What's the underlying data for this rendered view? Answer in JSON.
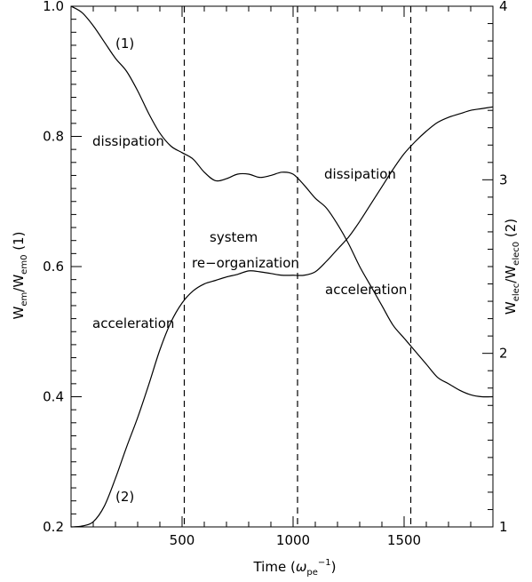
{
  "chart_data": {
    "type": "line",
    "xlabel": "Time (ω_pe^-1)",
    "ylabel_left": "W_em/W_em0 (1)",
    "ylabel_right": "W_elec/W_elec0 (2)",
    "xlim": [
      0,
      1900
    ],
    "ylim_left": [
      0.2,
      1.0
    ],
    "ylim_right": [
      1,
      4
    ],
    "x_ticks": [
      500,
      1000,
      1500
    ],
    "y_left_ticks": [
      0.2,
      0.4,
      0.6,
      0.8,
      1.0
    ],
    "y_left_tick_labels": [
      "0.2",
      "0.4",
      "0.6",
      "0.8",
      "1.0"
    ],
    "y_right_ticks": [
      1,
      2,
      3,
      4
    ],
    "vlines": [
      510,
      1020,
      1530
    ],
    "series": [
      {
        "name": "(1)",
        "axis": "left",
        "x": [
          0,
          50,
          100,
          150,
          200,
          250,
          300,
          350,
          400,
          450,
          500,
          550,
          600,
          650,
          700,
          750,
          800,
          850,
          900,
          950,
          1000,
          1050,
          1100,
          1150,
          1200,
          1250,
          1300,
          1350,
          1400,
          1450,
          1500,
          1550,
          1600,
          1650,
          1700,
          1750,
          1800,
          1850,
          1900
        ],
        "values": [
          1.0,
          0.99,
          0.97,
          0.945,
          0.92,
          0.9,
          0.87,
          0.835,
          0.805,
          0.785,
          0.775,
          0.765,
          0.745,
          0.732,
          0.735,
          0.742,
          0.742,
          0.737,
          0.74,
          0.745,
          0.742,
          0.725,
          0.705,
          0.69,
          0.665,
          0.635,
          0.6,
          0.57,
          0.54,
          0.51,
          0.49,
          0.47,
          0.45,
          0.43,
          0.42,
          0.41,
          0.403,
          0.4,
          0.4
        ]
      },
      {
        "name": "(2)",
        "axis": "right",
        "x": [
          0,
          50,
          100,
          150,
          200,
          250,
          300,
          350,
          400,
          450,
          500,
          550,
          600,
          650,
          700,
          750,
          800,
          850,
          900,
          950,
          1000,
          1050,
          1100,
          1150,
          1200,
          1250,
          1300,
          1350,
          1400,
          1450,
          1500,
          1550,
          1600,
          1650,
          1700,
          1750,
          1800,
          1850,
          1900
        ],
        "values": [
          1.0,
          1.005,
          1.03,
          1.12,
          1.28,
          1.46,
          1.63,
          1.82,
          2.02,
          2.18,
          2.29,
          2.36,
          2.4,
          2.42,
          2.44,
          2.455,
          2.475,
          2.47,
          2.46,
          2.45,
          2.45,
          2.45,
          2.47,
          2.53,
          2.6,
          2.67,
          2.76,
          2.86,
          2.96,
          3.06,
          3.15,
          3.22,
          3.28,
          3.33,
          3.36,
          3.38,
          3.4,
          3.41,
          3.42
        ]
      }
    ],
    "annotations": {
      "curve1_label": "(1)",
      "curve2_label": "(2)",
      "dissipation_1": "dissipation",
      "dissipation_2": "dissipation",
      "system": "system",
      "reorganization": "re−organization",
      "acceleration_1": "acceleration",
      "acceleration_2": "acceleration"
    }
  }
}
